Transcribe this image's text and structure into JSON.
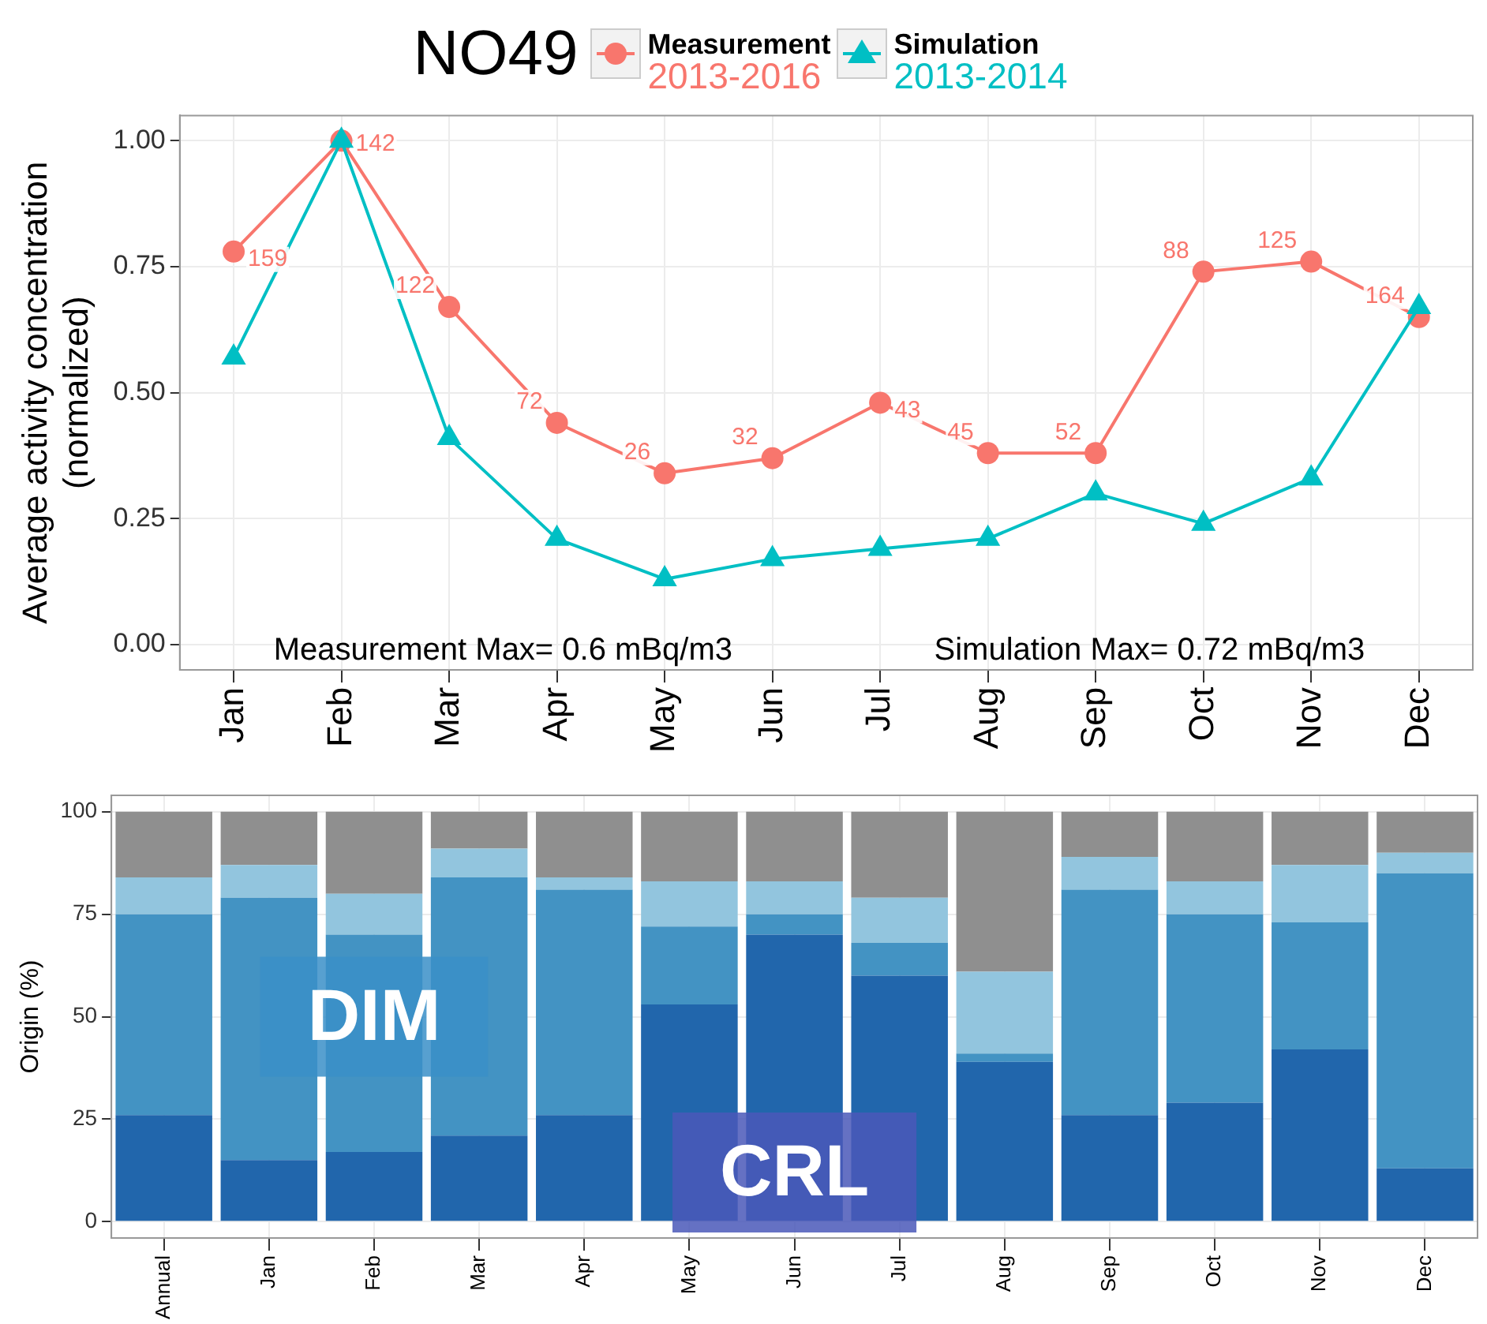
{
  "chart_data": [
    {
      "type": "line",
      "title": "NO49",
      "ylabel": "Average activity concentration\n(normalized)",
      "categories": [
        "Jan",
        "Feb",
        "Mar",
        "Apr",
        "May",
        "Jun",
        "Jul",
        "Aug",
        "Sep",
        "Oct",
        "Nov",
        "Dec"
      ],
      "series": [
        {
          "name": "Measurement\n2013-2016",
          "color": "#f8766d",
          "marker": "circle",
          "values": [
            0.78,
            1.0,
            0.67,
            0.44,
            0.34,
            0.37,
            0.48,
            0.38,
            0.38,
            0.74,
            0.76,
            0.65
          ]
        },
        {
          "name": "Simulation\n2013-2014",
          "color": "#00bfc4",
          "marker": "triangle",
          "values": [
            0.57,
            1.0,
            0.41,
            0.21,
            0.13,
            0.17,
            0.19,
            0.21,
            0.3,
            0.24,
            0.33,
            0.67
          ]
        }
      ],
      "ylim": [
        -0.05,
        1.05
      ],
      "yticks": [
        {
          "value": 0,
          "label": "0.00"
        },
        {
          "value": 0.25,
          "label": "0.25"
        },
        {
          "value": 0.5,
          "label": "0.50"
        },
        {
          "value": 0.75,
          "label": "0.75"
        },
        {
          "value": 1,
          "label": "1.00"
        }
      ],
      "grid": true,
      "legend": "top",
      "line_style": "solid",
      "annotations": [
        "Measurement Max= 0.6 mBq/m3",
        "Simulation Max= 0.72 mBq/m3",
        {
          "text": "159",
          "x": "Jan",
          "y": 0.78
        },
        {
          "text": "142",
          "x": "Feb",
          "y": 1.0
        },
        {
          "text": "122",
          "x": "Mar",
          "y": 0.67
        },
        {
          "text": "72",
          "x": "Apr",
          "y": 0.44
        },
        {
          "text": "26",
          "x": "May",
          "y": 0.34
        },
        {
          "text": "32",
          "x": "Jun",
          "y": 0.37
        },
        {
          "text": "43",
          "x": "Jul",
          "y": 0.48
        },
        {
          "text": "45",
          "x": "Aug",
          "y": 0.38
        },
        {
          "text": "52",
          "x": "Sep",
          "y": 0.38
        },
        {
          "text": "88",
          "x": "Oct",
          "y": 0.74
        },
        {
          "text": "125",
          "x": "Nov",
          "y": 0.76
        },
        {
          "text": "164",
          "x": "Dec",
          "y": 0.65
        }
      ]
    },
    {
      "type": "bar",
      "stacked": true,
      "ylabel": "Origin (%)",
      "categories": [
        "Annual",
        "Jan",
        "Feb",
        "Mar",
        "Apr",
        "May",
        "Jun",
        "Jul",
        "Aug",
        "Sep",
        "Oct",
        "Nov",
        "Dec"
      ],
      "series": [
        {
          "color": "#2166ac",
          "values": [
            26,
            15,
            17,
            21,
            26,
            53,
            70,
            60,
            39,
            26,
            29,
            42,
            13
          ]
        },
        {
          "color": "#4393c3",
          "values": [
            49,
            64,
            53,
            63,
            55,
            19,
            5,
            8,
            2,
            55,
            46,
            31,
            72
          ]
        },
        {
          "color": "#92c5de",
          "values": [
            9,
            8,
            10,
            7,
            3,
            11,
            8,
            11,
            20,
            8,
            8,
            14,
            5
          ]
        },
        {
          "color": "#8f8f8f",
          "values": [
            16,
            13,
            20,
            9,
            16,
            17,
            17,
            21,
            39,
            11,
            17,
            13,
            10
          ]
        }
      ],
      "ylim": [
        -4,
        104
      ],
      "yticks": [
        0,
        25,
        50,
        75,
        100
      ],
      "grid": true,
      "legend": false,
      "annotations": [
        "DIM",
        "CRL"
      ]
    }
  ]
}
